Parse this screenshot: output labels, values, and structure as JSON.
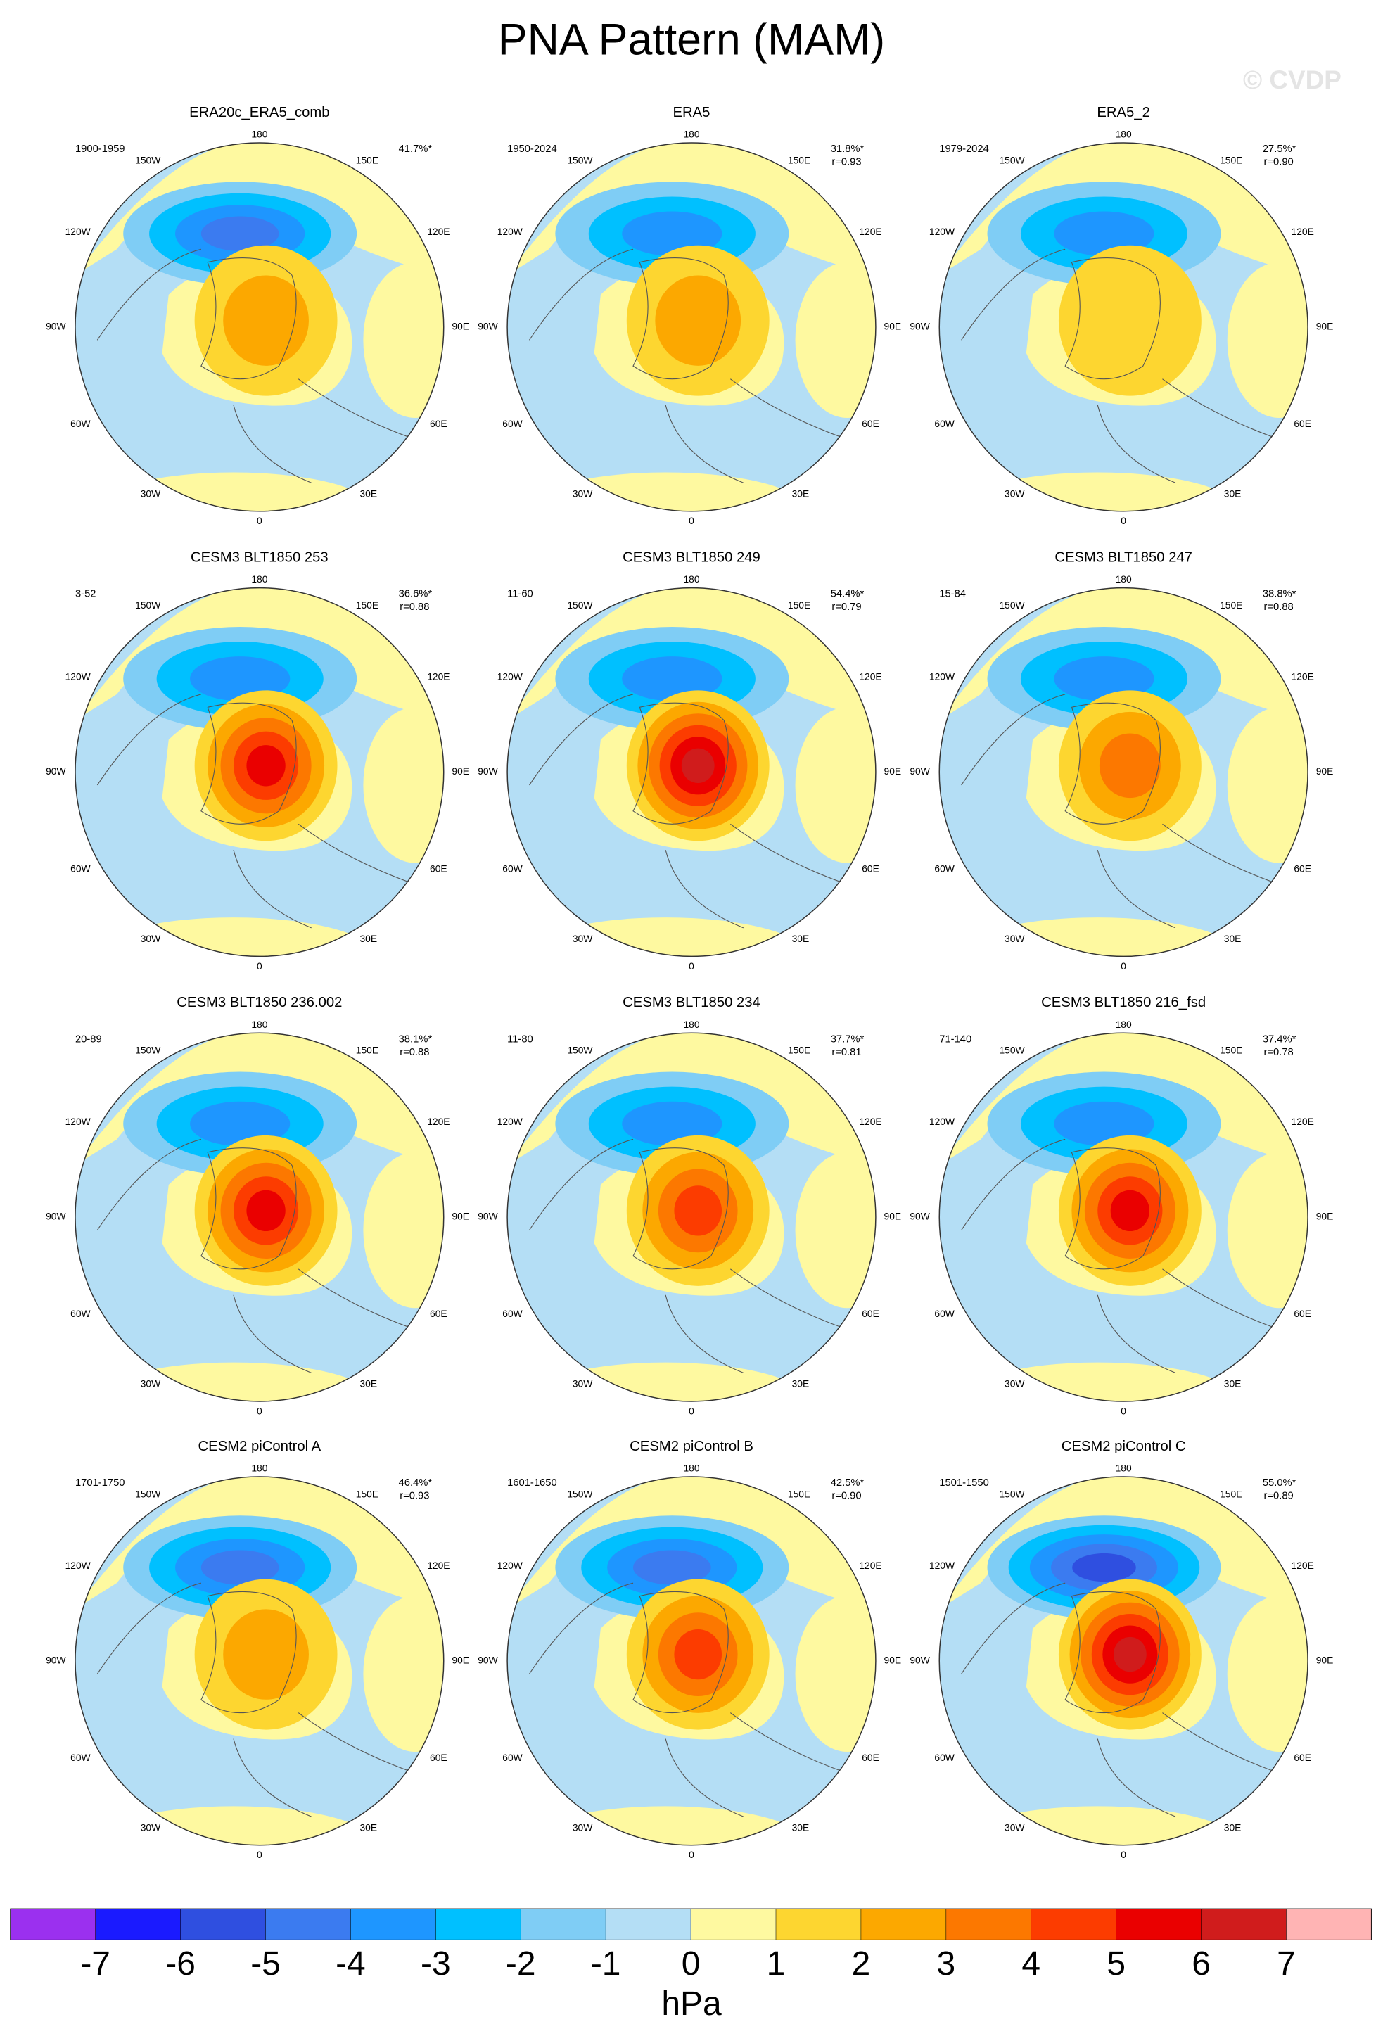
{
  "title": "PNA Pattern (MAM)",
  "watermark": "© CVDP",
  "lon_labels": [
    "180",
    "150E",
    "120E",
    "90E",
    "60E",
    "30E",
    "0",
    "30W",
    "60W",
    "90W",
    "120W",
    "150W"
  ],
  "panels": [
    {
      "title": "ERA20c_ERA5_comb",
      "period": "1900-1959",
      "pct": "41.7%*"
    },
    {
      "title": "ERA5",
      "period": "1950-2024",
      "pct": "31.8%*",
      "r": "r=0.93"
    },
    {
      "title": "ERA5_2",
      "period": "1979-2024",
      "pct": "27.5%*",
      "r": "r=0.90"
    },
    {
      "title": "CESM3 BLT1850 253",
      "period": "3-52",
      "pct": "36.6%*",
      "r": "r=0.88"
    },
    {
      "title": "CESM3 BLT1850 249",
      "period": "11-60",
      "pct": "54.4%*",
      "r": "r=0.79"
    },
    {
      "title": "CESM3 BLT1850 247",
      "period": "15-84",
      "pct": "38.8%*",
      "r": "r=0.88"
    },
    {
      "title": "CESM3 BLT1850 236.002",
      "period": "20-89",
      "pct": "38.1%*",
      "r": "r=0.88"
    },
    {
      "title": "CESM3 BLT1850 234",
      "period": "11-80",
      "pct": "37.7%*",
      "r": "r=0.81"
    },
    {
      "title": "CESM3 BLT1850 216_fsd",
      "period": "71-140",
      "pct": "37.4%*",
      "r": "r=0.78"
    },
    {
      "title": "CESM2 piControl A",
      "period": "1701-1750",
      "pct": "46.4%*",
      "r": "r=0.93"
    },
    {
      "title": "CESM2 piControl B",
      "period": "1601-1650",
      "pct": "42.5%*",
      "r": "r=0.90"
    },
    {
      "title": "CESM2 piControl C",
      "period": "1501-1550",
      "pct": "55.0%*",
      "r": "r=0.89"
    }
  ],
  "colorbar": {
    "label": "hPa",
    "ticks": [
      -7,
      -6,
      -5,
      -4,
      -3,
      -2,
      -1,
      0,
      1,
      2,
      3,
      4,
      5,
      6,
      7
    ],
    "colors": [
      "#9b30ef",
      "#1a1aff",
      "#2f4fe0",
      "#3b7bf0",
      "#1e96ff",
      "#00c0ff",
      "#7fcdf5",
      "#b4def5",
      "#fef9a0",
      "#fdd630",
      "#fca800",
      "#fc7800",
      "#fc3c00",
      "#ea0000",
      "#d01c1c",
      "#ffb4b4"
    ]
  }
}
